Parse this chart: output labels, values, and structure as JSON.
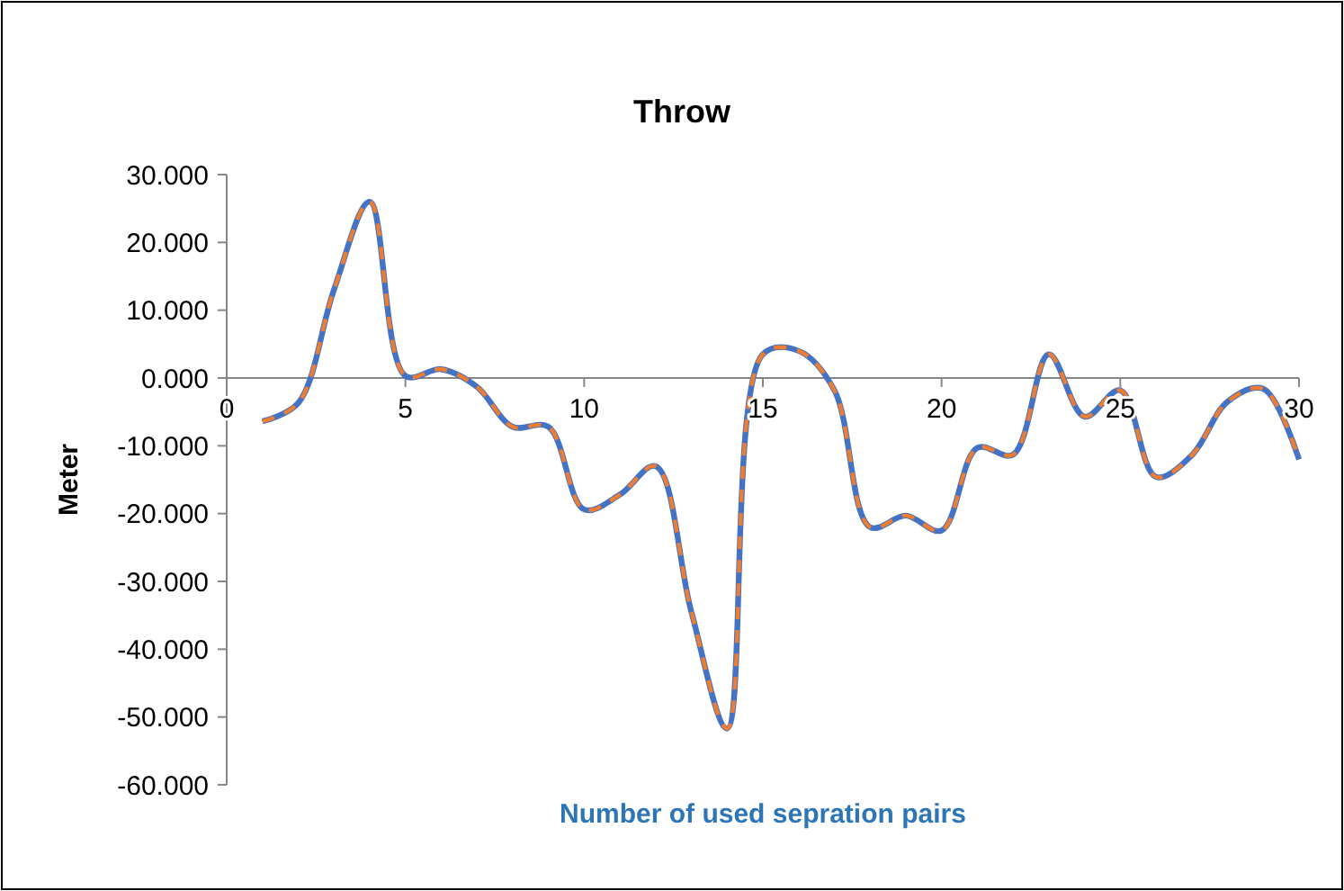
{
  "chart_data": {
    "type": "line",
    "title": "Throw",
    "xlabel": "Number of used sepration pairs",
    "ylabel": "Meter",
    "x": [
      1,
      2,
      3,
      4,
      5,
      6,
      7,
      8,
      9,
      10,
      11,
      12,
      13,
      14,
      15,
      16,
      17,
      18,
      19,
      20,
      21,
      22,
      23,
      24,
      25,
      26,
      27,
      28,
      29,
      30
    ],
    "series": [
      {
        "color": "#4472c4",
        "line_style": "solid",
        "values": [
          -6.4,
          -3.7,
          13,
          26,
          0.3,
          1.3,
          -1.3,
          -7.2,
          -7.2,
          -19.4,
          -17.2,
          -13,
          -34.5,
          -51.7,
          3.5,
          4,
          -1.8,
          -22,
          -20.3,
          -22.5,
          -10.3,
          -11.3,
          3.5,
          -5.7,
          -1.8,
          -14.6,
          -11.4,
          -3.5,
          -1.6,
          -12
        ]
      },
      {
        "color": "#ed7d31",
        "line_style": "dashed",
        "values": [
          -6.4,
          -3.7,
          13,
          26,
          0.3,
          1.3,
          -1.3,
          -7.2,
          -7.2,
          -19.4,
          -17.2,
          -13,
          -34.5,
          -51.7,
          3.5,
          4,
          -1.8,
          -22,
          -20.3,
          -22.5,
          -10.3,
          -11.3,
          3.5,
          -5.7,
          -1.8,
          -14.6,
          -11.4,
          -3.5,
          -1.6,
          -12
        ]
      }
    ],
    "xlim": [
      0,
      30
    ],
    "xticks": [
      0,
      5,
      10,
      15,
      20,
      25,
      30
    ],
    "ylim": [
      -60,
      30
    ],
    "yticks": [
      {
        "value": 30,
        "label": "30.000"
      },
      {
        "value": 20,
        "label": "20.000"
      },
      {
        "value": 10,
        "label": "10.000"
      },
      {
        "value": 0,
        "label": "0.000"
      },
      {
        "value": -10,
        "label": "-10.000"
      },
      {
        "value": -20,
        "label": "-20.000"
      },
      {
        "value": -30,
        "label": "-30.000"
      },
      {
        "value": -40,
        "label": "-40.000"
      },
      {
        "value": -50,
        "label": "-50.000"
      },
      {
        "value": -60,
        "label": "-60.000"
      }
    ],
    "grid": false,
    "marker": "none"
  }
}
